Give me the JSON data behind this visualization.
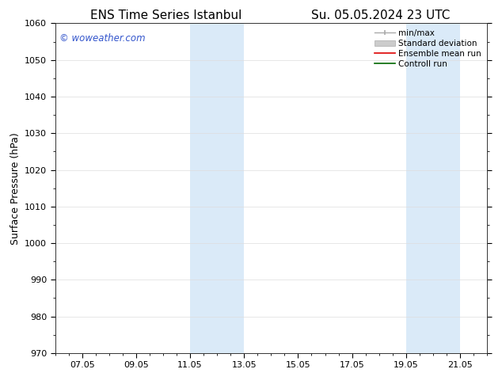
{
  "title1": "ENS Time Series Istanbul",
  "title2": "Su. 05.05.2024 23 UTC",
  "ylabel": "Surface Pressure (hPa)",
  "ylim": [
    970,
    1060
  ],
  "yticks": [
    970,
    980,
    990,
    1000,
    1010,
    1020,
    1030,
    1040,
    1050,
    1060
  ],
  "xtick_labels": [
    "07.05",
    "09.05",
    "11.05",
    "13.05",
    "15.05",
    "17.05",
    "19.05",
    "21.05"
  ],
  "xtick_positions": [
    1.0,
    3.0,
    5.0,
    7.0,
    9.0,
    11.0,
    13.0,
    15.0
  ],
  "xlim": [
    0.0,
    16.0
  ],
  "shaded_bands": [
    {
      "xmin": 5.0,
      "xmax": 7.0
    },
    {
      "xmin": 13.0,
      "xmax": 15.0
    }
  ],
  "shade_color": "#daeaf8",
  "watermark": "© woweather.com",
  "watermark_color": "#3355cc",
  "legend_items": [
    {
      "label": "min/max",
      "color": "#aaaaaa",
      "lw": 1.0
    },
    {
      "label": "Standard deviation",
      "color": "#cccccc",
      "lw": 5
    },
    {
      "label": "Ensemble mean run",
      "color": "#dd0000",
      "lw": 1.2
    },
    {
      "label": "Controll run",
      "color": "#006600",
      "lw": 1.2
    }
  ],
  "bg_color": "#ffffff",
  "spine_color": "#333333",
  "grid_color": "#dddddd",
  "title_fontsize": 11,
  "axis_label_fontsize": 9,
  "tick_fontsize": 8,
  "legend_fontsize": 7.5
}
